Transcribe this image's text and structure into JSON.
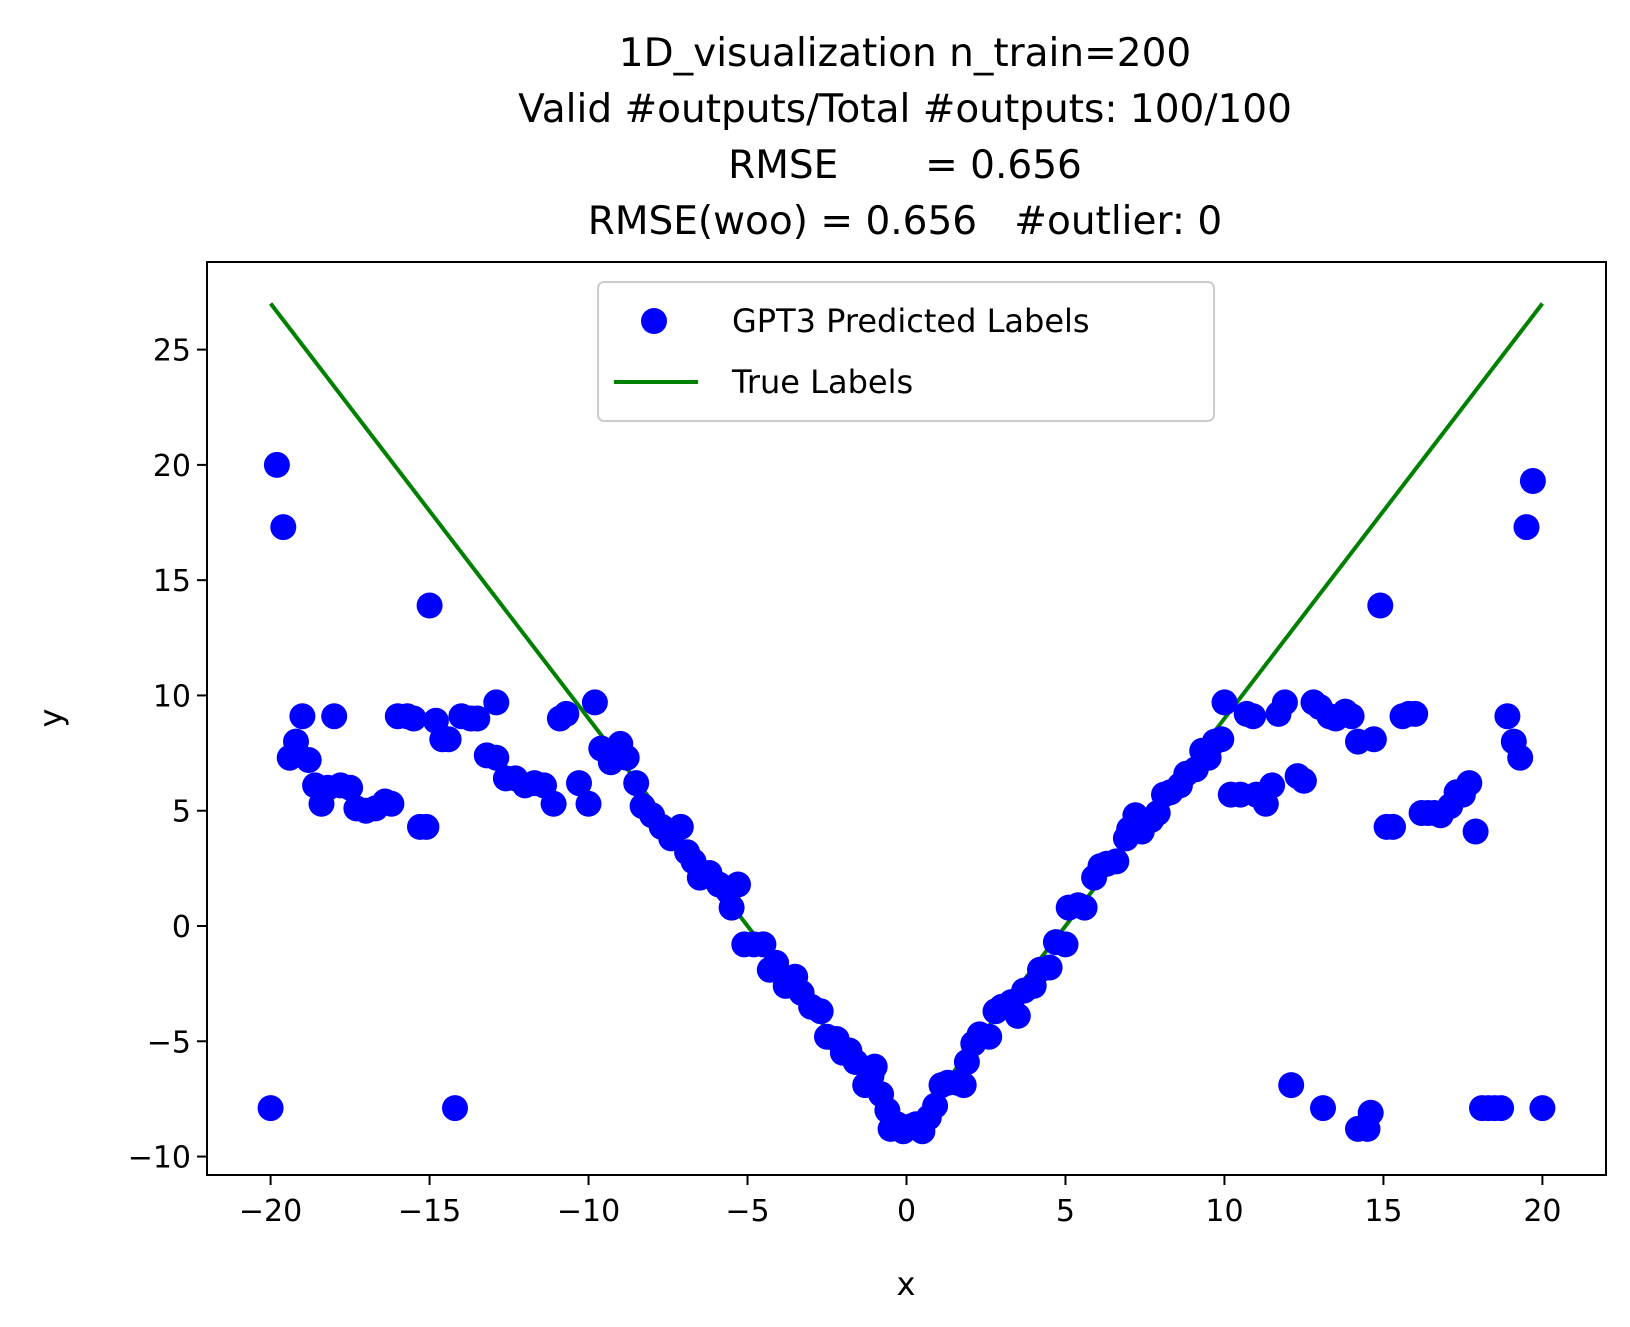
{
  "chart_data": {
    "type": "scatter",
    "title_lines": [
      "1D_visualization  n_train=200",
      "Valid #outputs/Total #outputs: 100/100",
      "RMSE       = 0.656",
      "RMSE(woo) = 0.656   #outlier: 0"
    ],
    "xlabel": "x",
    "ylabel": "y",
    "xlim": [
      -22,
      22
    ],
    "ylim": [
      -10.8,
      28.8
    ],
    "xticks": [
      -20,
      -15,
      -10,
      -5,
      0,
      5,
      10,
      15,
      20
    ],
    "yticks": [
      -10,
      -5,
      0,
      5,
      10,
      15,
      20,
      25
    ],
    "xtick_labels": [
      "−20",
      "−15",
      "−10",
      "−5",
      "0",
      "5",
      "10",
      "15",
      "20"
    ],
    "ytick_labels": [
      "−10",
      "−5",
      "0",
      "5",
      "10",
      "15",
      "20",
      "25"
    ],
    "grid": false,
    "legend_position": "top-center",
    "series": [
      {
        "name": "GPT3 Predicted Labels",
        "kind": "scatter",
        "color": "#0000ff",
        "points": [
          [
            -20.0,
            -7.9
          ],
          [
            -19.8,
            20.0
          ],
          [
            -19.6,
            17.3
          ],
          [
            -19.4,
            7.3
          ],
          [
            -19.2,
            8.0
          ],
          [
            -19.0,
            9.1
          ],
          [
            -18.8,
            7.2
          ],
          [
            -18.6,
            6.1
          ],
          [
            -18.4,
            5.3
          ],
          [
            -18.2,
            6.0
          ],
          [
            -18.0,
            9.1
          ],
          [
            -17.8,
            6.1
          ],
          [
            -17.5,
            6.0
          ],
          [
            -17.3,
            5.1
          ],
          [
            -17.0,
            5.0
          ],
          [
            -16.7,
            5.1
          ],
          [
            -16.4,
            5.4
          ],
          [
            -16.2,
            5.3
          ],
          [
            -16.0,
            9.1
          ],
          [
            -15.7,
            9.1
          ],
          [
            -15.5,
            9.0
          ],
          [
            -15.3,
            4.3
          ],
          [
            -15.1,
            4.3
          ],
          [
            -15.0,
            13.9
          ],
          [
            -14.8,
            8.9
          ],
          [
            -14.6,
            8.1
          ],
          [
            -14.4,
            8.1
          ],
          [
            -14.2,
            -7.9
          ],
          [
            -14.0,
            9.1
          ],
          [
            -13.7,
            9.0
          ],
          [
            -13.5,
            9.0
          ],
          [
            -13.2,
            7.4
          ],
          [
            -12.9,
            9.7
          ],
          [
            -12.9,
            7.3
          ],
          [
            -12.6,
            6.4
          ],
          [
            -12.3,
            6.4
          ],
          [
            -12.0,
            6.1
          ],
          [
            -11.7,
            6.2
          ],
          [
            -11.4,
            6.1
          ],
          [
            -11.1,
            5.3
          ],
          [
            -10.9,
            9.0
          ],
          [
            -10.7,
            9.2
          ],
          [
            -10.3,
            6.2
          ],
          [
            -10.0,
            5.3
          ],
          [
            -9.8,
            9.7
          ],
          [
            -9.6,
            7.7
          ],
          [
            -9.3,
            7.1
          ],
          [
            -9.0,
            7.9
          ],
          [
            -8.8,
            7.3
          ],
          [
            -8.5,
            6.2
          ],
          [
            -8.3,
            5.2
          ],
          [
            -8.0,
            4.8
          ],
          [
            -7.7,
            4.3
          ],
          [
            -7.4,
            3.8
          ],
          [
            -7.1,
            4.3
          ],
          [
            -6.9,
            3.2
          ],
          [
            -6.7,
            2.8
          ],
          [
            -6.5,
            2.1
          ],
          [
            -6.2,
            2.3
          ],
          [
            -5.9,
            1.8
          ],
          [
            -5.6,
            1.5
          ],
          [
            -5.5,
            0.8
          ],
          [
            -5.3,
            1.8
          ],
          [
            -5.1,
            -0.8
          ],
          [
            -4.8,
            -0.8
          ],
          [
            -4.5,
            -0.8
          ],
          [
            -4.3,
            -1.9
          ],
          [
            -4.1,
            -1.6
          ],
          [
            -3.8,
            -2.6
          ],
          [
            -3.5,
            -2.2
          ],
          [
            -3.3,
            -2.9
          ],
          [
            -3.0,
            -3.5
          ],
          [
            -2.7,
            -3.7
          ],
          [
            -2.5,
            -4.8
          ],
          [
            -2.2,
            -4.9
          ],
          [
            -2.0,
            -5.5
          ],
          [
            -1.8,
            -5.4
          ],
          [
            -1.6,
            -5.9
          ],
          [
            -1.3,
            -6.9
          ],
          [
            -1.1,
            -6.5
          ],
          [
            -1.0,
            -6.1
          ],
          [
            -0.8,
            -7.3
          ],
          [
            -0.6,
            -8.0
          ],
          [
            -0.5,
            -8.8
          ],
          [
            -0.3,
            -8.6
          ],
          [
            -0.1,
            -8.9
          ],
          [
            0.1,
            -8.7
          ],
          [
            0.3,
            -8.6
          ],
          [
            0.5,
            -8.9
          ],
          [
            0.7,
            -8.3
          ],
          [
            0.9,
            -7.8
          ],
          [
            1.1,
            -6.9
          ],
          [
            1.3,
            -6.8
          ],
          [
            1.6,
            -6.8
          ],
          [
            1.8,
            -6.9
          ],
          [
            1.9,
            -5.9
          ],
          [
            2.1,
            -5.1
          ],
          [
            2.3,
            -4.7
          ],
          [
            2.6,
            -4.8
          ],
          [
            2.8,
            -3.7
          ],
          [
            3.0,
            -3.5
          ],
          [
            3.3,
            -3.3
          ],
          [
            3.5,
            -3.9
          ],
          [
            3.7,
            -2.8
          ],
          [
            4.0,
            -2.6
          ],
          [
            4.2,
            -1.9
          ],
          [
            4.5,
            -1.8
          ],
          [
            4.7,
            -0.7
          ],
          [
            5.0,
            -0.8
          ],
          [
            5.1,
            0.8
          ],
          [
            5.4,
            0.9
          ],
          [
            5.6,
            0.8
          ],
          [
            5.9,
            2.1
          ],
          [
            6.1,
            2.6
          ],
          [
            6.3,
            2.7
          ],
          [
            6.6,
            2.8
          ],
          [
            6.9,
            3.8
          ],
          [
            7.0,
            4.2
          ],
          [
            7.2,
            4.8
          ],
          [
            7.4,
            4.1
          ],
          [
            7.7,
            4.6
          ],
          [
            7.9,
            4.9
          ],
          [
            8.1,
            5.7
          ],
          [
            8.3,
            5.8
          ],
          [
            8.6,
            6.1
          ],
          [
            8.8,
            6.6
          ],
          [
            9.1,
            6.8
          ],
          [
            9.3,
            7.6
          ],
          [
            9.5,
            7.3
          ],
          [
            9.7,
            8.0
          ],
          [
            9.9,
            8.1
          ],
          [
            10.0,
            9.7
          ],
          [
            10.2,
            5.7
          ],
          [
            10.5,
            5.7
          ],
          [
            10.7,
            9.2
          ],
          [
            10.9,
            9.1
          ],
          [
            11.0,
            5.7
          ],
          [
            11.3,
            5.3
          ],
          [
            11.5,
            6.1
          ],
          [
            11.7,
            9.2
          ],
          [
            11.9,
            9.7
          ],
          [
            12.1,
            -6.9
          ],
          [
            12.3,
            6.5
          ],
          [
            12.5,
            6.3
          ],
          [
            12.8,
            9.7
          ],
          [
            13.0,
            9.5
          ],
          [
            13.1,
            -7.9
          ],
          [
            13.3,
            9.1
          ],
          [
            13.5,
            9.0
          ],
          [
            13.8,
            9.3
          ],
          [
            14.0,
            9.1
          ],
          [
            14.2,
            8.0
          ],
          [
            14.2,
            -8.8
          ],
          [
            14.5,
            -8.8
          ],
          [
            14.6,
            -8.1
          ],
          [
            14.7,
            8.1
          ],
          [
            14.9,
            13.9
          ],
          [
            15.1,
            4.3
          ],
          [
            15.3,
            4.3
          ],
          [
            15.6,
            9.1
          ],
          [
            15.8,
            9.2
          ],
          [
            16.0,
            9.2
          ],
          [
            16.2,
            4.9
          ],
          [
            16.4,
            4.9
          ],
          [
            16.6,
            4.9
          ],
          [
            16.8,
            4.8
          ],
          [
            17.1,
            5.2
          ],
          [
            17.3,
            5.8
          ],
          [
            17.5,
            5.7
          ],
          [
            17.7,
            6.2
          ],
          [
            17.9,
            4.1
          ],
          [
            18.1,
            -7.9
          ],
          [
            18.3,
            -7.9
          ],
          [
            18.5,
            -7.9
          ],
          [
            18.7,
            -7.9
          ],
          [
            18.9,
            9.1
          ],
          [
            19.1,
            8.0
          ],
          [
            19.3,
            7.3
          ],
          [
            19.5,
            17.3
          ],
          [
            19.7,
            19.3
          ],
          [
            20.0,
            -7.9
          ]
        ]
      },
      {
        "name": "True Labels",
        "kind": "line",
        "color": "#008000",
        "points": [
          [
            -20,
            27.0
          ],
          [
            0,
            -9.0
          ],
          [
            20,
            27.0
          ]
        ]
      }
    ]
  }
}
